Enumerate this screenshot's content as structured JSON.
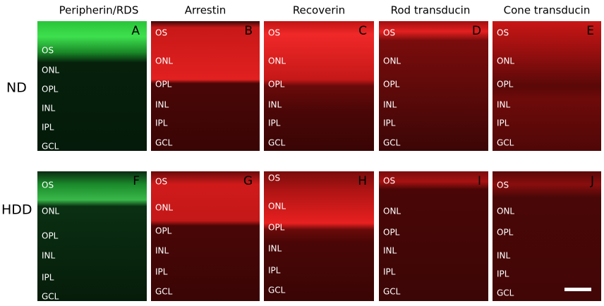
{
  "columns": [
    "Peripherin/RDS",
    "Arrestin",
    "Recoverin",
    "Rod transducin",
    "Cone transducin"
  ],
  "rows": [
    {
      "label": "ND",
      "panels": [
        {
          "letter": "A",
          "layers": [
            "OS",
            "ONL",
            "OPL",
            "INL",
            "IPL",
            "GCL"
          ]
        },
        {
          "letter": "B",
          "layers": [
            "OS",
            "ONL",
            "OPL",
            "INL",
            "IPL",
            "GCL"
          ]
        },
        {
          "letter": "C",
          "layers": [
            "OS",
            "ONL",
            "OPL",
            "INL",
            "IPL",
            "GCL"
          ]
        },
        {
          "letter": "D",
          "layers": [
            "OS",
            "ONL",
            "OPL",
            "INL",
            "IPL",
            "GCL"
          ]
        },
        {
          "letter": "E",
          "layers": [
            "OS",
            "ONL",
            "OPL",
            "INL",
            "IPL",
            "GCL"
          ]
        }
      ]
    },
    {
      "label": "HDD",
      "panels": [
        {
          "letter": "F",
          "layers": [
            "OS",
            "ONL",
            "OPL",
            "INL",
            "IPL",
            "GCL"
          ]
        },
        {
          "letter": "G",
          "layers": [
            "OS",
            "ONL",
            "OPL",
            "INL",
            "IPL",
            "GCL"
          ]
        },
        {
          "letter": "H",
          "layers": [
            "OS",
            "ONL",
            "OPL",
            "INL",
            "IPL",
            "GCL"
          ]
        },
        {
          "letter": "I",
          "layers": [
            "OS",
            "ONL",
            "OPL",
            "INL",
            "IPL",
            "GCL"
          ]
        },
        {
          "letter": "J",
          "layers": [
            "OS",
            "ONL",
            "OPL",
            "INL",
            "IPL",
            "GCL"
          ]
        }
      ]
    }
  ]
}
